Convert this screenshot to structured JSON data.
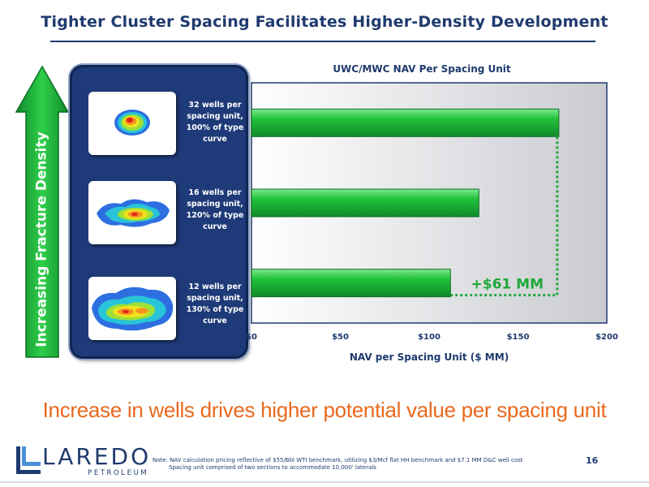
{
  "header": {
    "title": "Tighter Cluster Spacing Facilitates Higher-Density Development"
  },
  "arrow": {
    "label": "Increasing Fracture Density",
    "color": "#1fb33a"
  },
  "panel": {
    "items": [
      {
        "label_lines": [
          "32 wells per",
          "spacing unit,",
          "100% of type",
          "curve"
        ]
      },
      {
        "label_lines": [
          "16 wells per",
          "spacing unit,",
          "120% of type",
          "curve"
        ]
      },
      {
        "label_lines": [
          "12 wells per",
          "spacing unit,",
          "130% of type",
          "curve"
        ]
      }
    ]
  },
  "chart_data": {
    "type": "bar",
    "orientation": "horizontal",
    "title": "UWC/MWC NAV Per Spacing Unit",
    "xlabel": "NAV per Spacing Unit ($ MM)",
    "categories": [
      "32 wells per spacing unit",
      "16 wells per spacing unit",
      "12 wells per spacing unit"
    ],
    "values": [
      173,
      128,
      112
    ],
    "xlim": [
      0,
      200
    ],
    "ticks": [
      0,
      50,
      100,
      150,
      200
    ],
    "tick_labels": [
      "$0",
      "$50",
      "$100",
      "$150",
      "$200"
    ],
    "bar_color": "#22c13c",
    "grid": false,
    "annotation": {
      "text": "+$61 MM",
      "color": "#1fa83a"
    }
  },
  "tagline": "Increase in wells drives higher potential value per spacing unit",
  "footer": {
    "logo_word": "LAREDO",
    "logo_sub": "PETROLEUM",
    "note_line1": "Note: NAV calculation pricing reflective of $55/Bbl WTI benchmark, utilizing $3/Mcf flat HH benchmark and $7.1 MM D&C well cost",
    "note_line2": "Spacing unit comprised of two sections to accommodate 10,000' laterals",
    "page_number": "16"
  }
}
